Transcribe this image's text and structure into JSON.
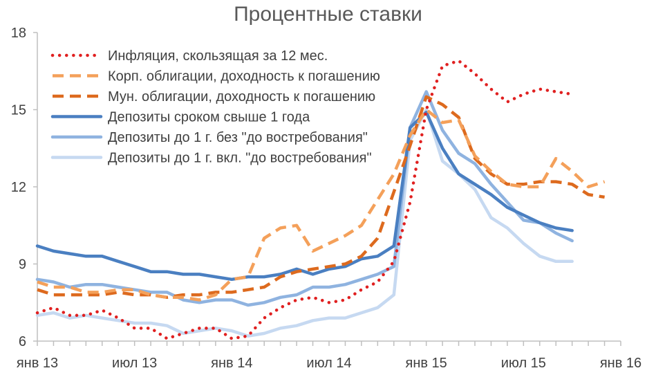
{
  "chart_data": {
    "type": "line",
    "title": "Процентные ставки",
    "xlabel": "",
    "ylabel": "",
    "ylim": [
      6,
      18
    ],
    "yticks": [
      6,
      9,
      12,
      15,
      18
    ],
    "xlim": [
      0,
      36
    ],
    "xticks": [
      {
        "x": 0,
        "label": "янв 13"
      },
      {
        "x": 6,
        "label": "июл 13"
      },
      {
        "x": 12,
        "label": "янв 14"
      },
      {
        "x": 18,
        "label": "июл 14"
      },
      {
        "x": 24,
        "label": "янв 15"
      },
      {
        "x": 30,
        "label": "июл 15"
      },
      {
        "x": 36,
        "label": "янв 16"
      }
    ],
    "legend_position": "top-left",
    "grid": false,
    "series": [
      {
        "name": "Инфляция, скользящая за 12 мес.",
        "color": "#e02020",
        "style": "dotted",
        "x": [
          0,
          1,
          2,
          3,
          4,
          5,
          6,
          7,
          8,
          9,
          10,
          11,
          12,
          13,
          14,
          15,
          16,
          17,
          18,
          19,
          20,
          21,
          22,
          23,
          24,
          25,
          26,
          27,
          28,
          29,
          30,
          31,
          32,
          33
        ],
        "values": [
          7.1,
          7.3,
          7.0,
          7.0,
          7.2,
          6.9,
          6.5,
          6.5,
          6.1,
          6.3,
          6.5,
          6.5,
          6.1,
          6.2,
          6.9,
          7.3,
          7.6,
          7.7,
          7.5,
          7.6,
          8.0,
          8.3,
          9.1,
          11.4,
          15.0,
          16.7,
          16.9,
          16.4,
          15.8,
          15.3,
          15.6,
          15.8,
          15.7,
          15.6
        ]
      },
      {
        "name": "Корп. облигации, доходность к погашению",
        "color": "#f4a05a",
        "style": "dashed",
        "x": [
          0,
          1,
          2,
          3,
          4,
          5,
          6,
          7,
          8,
          9,
          10,
          11,
          12,
          13,
          14,
          15,
          16,
          17,
          18,
          19,
          20,
          21,
          22,
          23,
          24,
          25,
          26,
          27,
          28,
          29,
          30,
          31,
          32,
          33,
          34,
          35
        ],
        "values": [
          8.3,
          8.1,
          8.1,
          7.9,
          7.9,
          8.0,
          8.0,
          7.8,
          7.7,
          7.7,
          7.6,
          7.8,
          8.4,
          8.5,
          10.0,
          10.4,
          10.5,
          9.5,
          9.8,
          10.1,
          10.5,
          11.5,
          12.5,
          14.0,
          15.0,
          14.5,
          14.6,
          13.2,
          12.6,
          12.1,
          12.0,
          12.0,
          13.1,
          12.6,
          12.0,
          12.2
        ]
      },
      {
        "name": "Мун. облигации, доходность к погашению",
        "color": "#dd6a1e",
        "style": "dashed",
        "x": [
          0,
          1,
          2,
          3,
          4,
          5,
          6,
          7,
          8,
          9,
          10,
          11,
          12,
          13,
          14,
          15,
          16,
          17,
          18,
          19,
          20,
          21,
          22,
          23,
          24,
          25,
          26,
          27,
          28,
          29,
          30,
          31,
          32,
          33,
          34,
          35
        ],
        "values": [
          8.0,
          7.8,
          7.8,
          7.8,
          7.8,
          7.9,
          7.8,
          7.8,
          7.7,
          7.8,
          7.8,
          7.9,
          7.9,
          8.0,
          8.1,
          8.5,
          8.7,
          8.8,
          8.9,
          9.0,
          9.3,
          10.0,
          11.8,
          13.6,
          15.5,
          15.2,
          14.7,
          13.1,
          12.5,
          12.1,
          12.1,
          12.2,
          12.2,
          12.1,
          11.7,
          11.6
        ]
      },
      {
        "name": "Депозиты сроком свыше 1 года",
        "color": "#4a7fc1",
        "style": "solid",
        "x": [
          0,
          1,
          2,
          3,
          4,
          5,
          6,
          7,
          8,
          9,
          10,
          11,
          12,
          13,
          14,
          15,
          16,
          17,
          18,
          19,
          20,
          21,
          22,
          23,
          24,
          25,
          26,
          27,
          28,
          29,
          30,
          31,
          32,
          33
        ],
        "values": [
          9.7,
          9.5,
          9.4,
          9.3,
          9.3,
          9.1,
          8.9,
          8.7,
          8.7,
          8.6,
          8.6,
          8.5,
          8.4,
          8.5,
          8.5,
          8.6,
          8.8,
          8.6,
          8.8,
          8.9,
          9.2,
          9.3,
          9.7,
          14.3,
          14.9,
          13.5,
          12.5,
          12.1,
          11.7,
          11.2,
          10.9,
          10.6,
          10.4,
          10.3
        ]
      },
      {
        "name": "Депозиты до 1 г. без \"до востребования\"",
        "color": "#8fb3e0",
        "style": "solid",
        "x": [
          0,
          1,
          2,
          3,
          4,
          5,
          6,
          7,
          8,
          9,
          10,
          11,
          12,
          13,
          14,
          15,
          16,
          17,
          18,
          19,
          20,
          21,
          22,
          23,
          24,
          25,
          26,
          27,
          28,
          29,
          30,
          31,
          32,
          33
        ],
        "values": [
          8.4,
          8.3,
          8.1,
          8.2,
          8.2,
          8.1,
          8.0,
          7.9,
          7.9,
          7.6,
          7.5,
          7.6,
          7.6,
          7.4,
          7.5,
          7.7,
          7.8,
          8.1,
          8.1,
          8.2,
          8.4,
          8.6,
          8.9,
          14.3,
          15.7,
          14.2,
          13.3,
          12.9,
          12.1,
          11.4,
          10.7,
          10.6,
          10.2,
          9.9
        ]
      },
      {
        "name": "Депозиты до 1 г. вкл. \"до востребования\"",
        "color": "#c6d9f1",
        "style": "solid",
        "x": [
          0,
          1,
          2,
          3,
          4,
          5,
          6,
          7,
          8,
          9,
          10,
          11,
          12,
          13,
          14,
          15,
          16,
          17,
          18,
          19,
          20,
          21,
          22,
          23,
          24,
          25,
          26,
          27,
          28,
          29,
          30,
          31,
          32,
          33
        ],
        "values": [
          7.0,
          7.1,
          6.9,
          7.0,
          6.9,
          6.8,
          6.7,
          6.7,
          6.6,
          6.3,
          6.4,
          6.5,
          6.4,
          6.2,
          6.3,
          6.5,
          6.6,
          6.8,
          6.9,
          6.9,
          7.1,
          7.3,
          7.8,
          13.8,
          15.0,
          13.0,
          12.5,
          11.9,
          10.8,
          10.4,
          9.8,
          9.3,
          9.1,
          9.1
        ]
      }
    ]
  }
}
